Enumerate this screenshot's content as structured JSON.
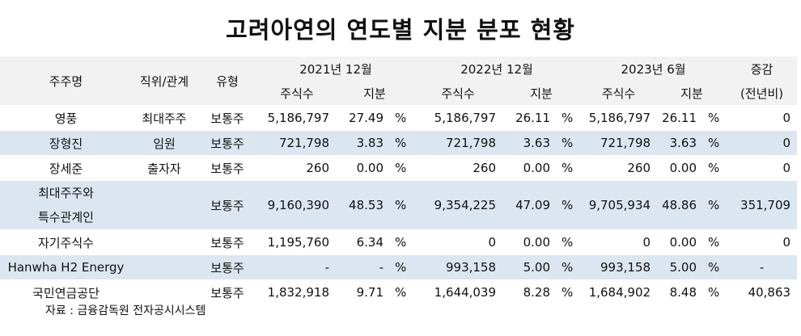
{
  "title": "고려아연의 연도별 지분 분포 현황",
  "header": {
    "shareholder": "주주명",
    "position": "직위/관계",
    "type": "유형",
    "y2021": "2021년 12월",
    "y2022": "2022년 12월",
    "y2023": "2023년 6월",
    "change_line1": "증감",
    "change_line2": "(전년비)",
    "shares": "주식수",
    "stake": "지분"
  },
  "rows": [
    {
      "name": "영풍",
      "position": "최대주주",
      "type": "보통주",
      "s21": "5,186,797",
      "p21": "27.49",
      "u21": "%",
      "s22": "5,186,797",
      "p22": "26.11",
      "u22": "%",
      "s23": "5,186,797",
      "p23": "26.11",
      "u23": "%",
      "change": "0"
    },
    {
      "name": "장형진",
      "position": "임원",
      "type": "보통주",
      "s21": "721,798",
      "p21": "3.83",
      "u21": "%",
      "s22": "721,798",
      "p22": "3.63",
      "u22": "%",
      "s23": "721,798",
      "p23": "3.63",
      "u23": "%",
      "change": "0"
    },
    {
      "name": "장세준",
      "position": "출자자",
      "type": "보통주",
      "s21": "260",
      "p21": "0.00",
      "u21": "%",
      "s22": "260",
      "p22": "0.00",
      "u22": "%",
      "s23": "260",
      "p23": "0.00",
      "u23": "%",
      "change": "0"
    },
    {
      "name_line1": "최대주주와",
      "name_line2": "특수관계인",
      "position": "",
      "type": "보통주",
      "s21": "9,160,390",
      "p21": "48.53",
      "u21": "%",
      "s22": "9,354,225",
      "p22": "47.09",
      "u22": "%",
      "s23": "9,705,934",
      "p23": "48.86",
      "u23": "%",
      "change": "351,709"
    },
    {
      "name": "자기주식수",
      "position": "",
      "type": "보통주",
      "s21": "1,195,760",
      "p21": "6.34",
      "u21": "%",
      "s22": "0",
      "p22": "0.00",
      "u22": "%",
      "s23": "0",
      "p23": "0.00",
      "u23": "%",
      "change": "0"
    },
    {
      "name": "Hanwha H2 Energy",
      "position": "",
      "type": "보통주",
      "s21": "-",
      "p21": "-",
      "u21": "%",
      "s22": "993,158",
      "p22": "5.00",
      "u22": "%",
      "s23": "993,158",
      "p23": "5.00",
      "u23": "%",
      "change": "-"
    },
    {
      "name": "국민연금공단",
      "position": "",
      "type": "보통주",
      "s21": "1,832,918",
      "p21": "9.71",
      "u21": "%",
      "s22": "1,644,039",
      "p22": "8.28",
      "u22": "%",
      "s23": "1,684,902",
      "p23": "8.48",
      "u23": "%",
      "change": "40,863"
    }
  ],
  "source": "자료 : 금융감독원 전자공시시스템"
}
